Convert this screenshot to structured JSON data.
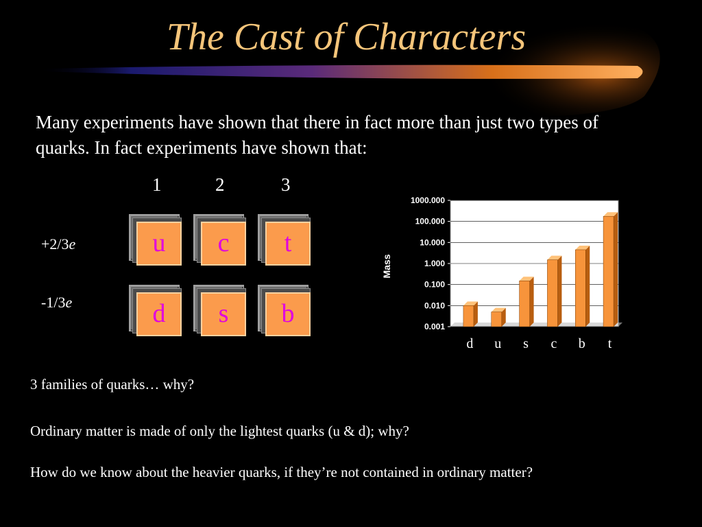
{
  "slide": {
    "title": "The Cast of Characters",
    "intro": "Many experiments have shown that there in fact more than just two types of quarks. In fact experiments have shown that:",
    "columns": [
      "1",
      "2",
      "3"
    ],
    "charges": [
      {
        "value": "+2/3",
        "unit": "e"
      },
      {
        "value": "-1/3",
        "unit": "e"
      }
    ],
    "quarks": [
      [
        "u",
        "c",
        "t"
      ],
      [
        "d",
        "s",
        "b"
      ]
    ],
    "questions": [
      "3 families of quarks… why?",
      "Ordinary matter is made of only the lightest quarks (u & d); why?",
      "How do we know about the heavier quarks, if they’re not contained in ordinary matter?"
    ]
  },
  "chart_data": {
    "type": "bar",
    "categories": [
      "d",
      "u",
      "s",
      "c",
      "b",
      "t"
    ],
    "values": [
      0.01,
      0.005,
      0.15,
      1.5,
      4.5,
      175
    ],
    "ylabel": "Mass",
    "xlabel": "",
    "yscale": "log",
    "ylim": [
      0.001,
      1000
    ],
    "yticks": [
      "0.001",
      "0.010",
      "0.100",
      "1.000",
      "10.000",
      "100.000",
      "1000.000"
    ],
    "grid": true,
    "legend": "none",
    "bar_color": "#f7943b",
    "plot_background": "#ffffff"
  }
}
